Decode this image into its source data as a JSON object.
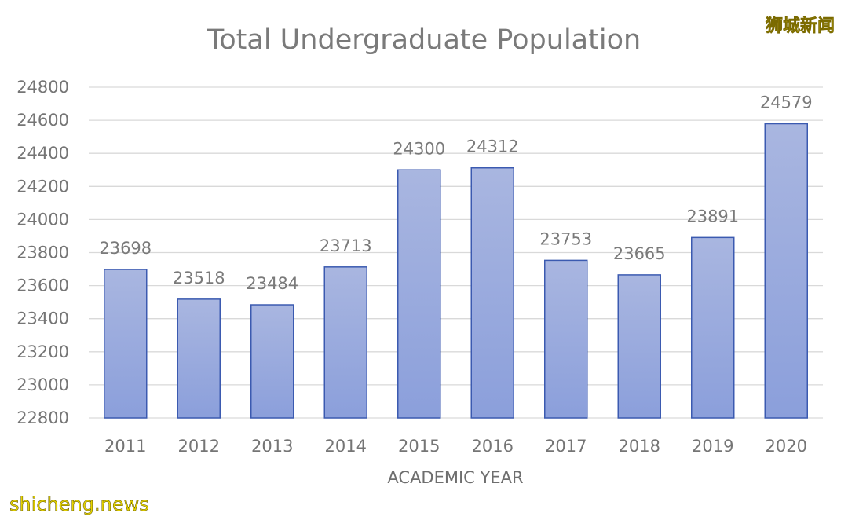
{
  "chart_data": {
    "type": "bar",
    "title": "Total Undergraduate Population",
    "xlabel": "ACADEMIC YEAR",
    "ylabel": "",
    "categories": [
      "2011",
      "2012",
      "2013",
      "2014",
      "2015",
      "2016",
      "2017",
      "2018",
      "2019",
      "2020"
    ],
    "values": [
      23698,
      23518,
      23484,
      23713,
      24300,
      24312,
      23753,
      23665,
      23891,
      24579
    ],
    "data_labels": [
      "23698",
      "23518",
      "23484",
      "23713",
      "24300",
      "24312",
      "23753",
      "23665",
      "23891",
      "24579"
    ],
    "ylim": [
      22800,
      24800
    ],
    "yticks": [
      "22800",
      "23000",
      "23200",
      "23400",
      "23600",
      "23800",
      "24000",
      "24200",
      "24400",
      "24600",
      "24800"
    ],
    "grid": true,
    "legend": "none",
    "colors": {
      "bar_top": "#a9b6e0",
      "bar_bottom": "#8b9fdb",
      "bar_edge": "#3b5ab0",
      "grid": "#d9d9d9"
    }
  },
  "watermarks": {
    "top_right": "狮城新闻",
    "bottom_left": "shicheng.news"
  }
}
